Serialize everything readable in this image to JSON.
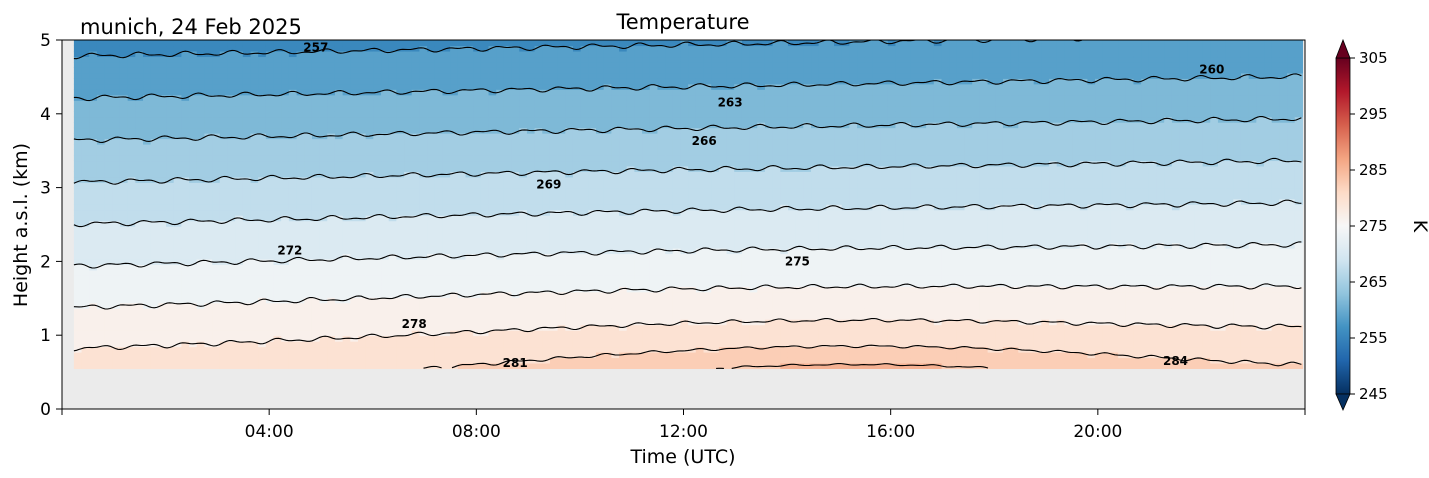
{
  "chart_data": {
    "type": "heatmap",
    "title": "Temperature",
    "subtitle": "munich, 24 Feb 2025",
    "xlabel": "Time (UTC)",
    "ylabel": "Height a.s.l. (km)",
    "x_ticks": [
      "04:00",
      "08:00",
      "12:00",
      "16:00",
      "20:00"
    ],
    "x_tick_hours": [
      4,
      8,
      12,
      16,
      20
    ],
    "xlim_hours": [
      0,
      24
    ],
    "y_ticks": [
      "0",
      "1",
      "2",
      "3",
      "4",
      "5"
    ],
    "ylim": [
      0,
      5
    ],
    "data_bottom_km": 0.55,
    "colorbar": {
      "label": "K",
      "ticks": [
        "245",
        "255",
        "265",
        "275",
        "285",
        "295",
        "305"
      ],
      "range": [
        245,
        305
      ],
      "colormap": "RdBu_r",
      "extend": "both"
    },
    "contour_levels": [
      257,
      260,
      263,
      266,
      269,
      272,
      275,
      278,
      281,
      284
    ],
    "contour_labels": [
      {
        "text": "257",
        "x_hour": 4.9,
        "y_km": 4.9
      },
      {
        "text": "260",
        "x_hour": 22.2,
        "y_km": 4.6
      },
      {
        "text": "263",
        "x_hour": 12.9,
        "y_km": 4.15
      },
      {
        "text": "266",
        "x_hour": 12.4,
        "y_km": 3.63
      },
      {
        "text": "269",
        "x_hour": 9.4,
        "y_km": 3.04
      },
      {
        "text": "272",
        "x_hour": 4.4,
        "y_km": 2.15
      },
      {
        "text": "275",
        "x_hour": 14.2,
        "y_km": 2.0
      },
      {
        "text": "278",
        "x_hour": 6.8,
        "y_km": 1.15
      },
      {
        "text": "281",
        "x_hour": 8.75,
        "y_km": 0.62
      },
      {
        "text": "284",
        "x_hour": 21.5,
        "y_km": 0.65
      }
    ],
    "missing_color": "#ebebeb"
  }
}
